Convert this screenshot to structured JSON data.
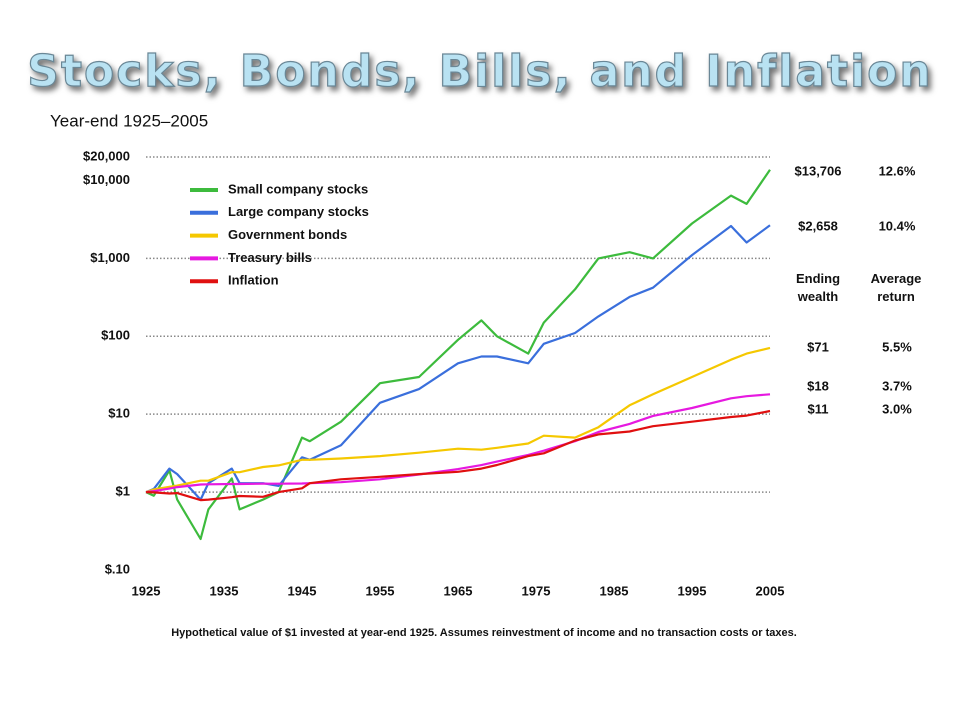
{
  "chart_data": {
    "type": "line",
    "title": "Stocks, Bonds, Bills, and Inflation",
    "subtitle": "Year-end 1925–2005",
    "footnote": "Hypothetical value of $1 invested at year-end 1925. Assumes reinvestment of income and no transaction costs or taxes.",
    "log_scale": true,
    "wealth_header": "Ending wealth",
    "return_header": "Average return",
    "x": [
      1925,
      1926,
      1928,
      1929,
      1932,
      1933,
      1936,
      1937,
      1940,
      1942,
      1945,
      1946,
      1950,
      1955,
      1960,
      1965,
      1968,
      1970,
      1974,
      1976,
      1980,
      1983,
      1987,
      1990,
      1995,
      2000,
      2002,
      2005
    ],
    "xlim": [
      1925,
      2005
    ],
    "xticks": [
      1925,
      1935,
      1945,
      1955,
      1965,
      1975,
      1985,
      1995,
      2005
    ],
    "ylim": [
      0.1,
      20000
    ],
    "yticks": [
      {
        "value": 0.1,
        "label": "$.10",
        "gridline": false
      },
      {
        "value": 1,
        "label": "$1",
        "gridline": true
      },
      {
        "value": 10,
        "label": "$10",
        "gridline": true
      },
      {
        "value": 100,
        "label": "$100",
        "gridline": true
      },
      {
        "value": 1000,
        "label": "$1,000",
        "gridline": true
      },
      {
        "value": 10000,
        "label": "$10,000",
        "gridline": false
      },
      {
        "value": 20000,
        "label": "$20,000",
        "gridline": true
      }
    ],
    "series": [
      {
        "name": "Small company stocks",
        "color": "#3dbb3d",
        "ending_wealth": "$13,706",
        "average_return": "12.6%",
        "values": [
          1,
          0.9,
          1.9,
          0.8,
          0.25,
          0.6,
          1.5,
          0.6,
          0.8,
          1.0,
          5.0,
          4.5,
          8,
          25,
          30,
          90,
          160,
          100,
          60,
          150,
          400,
          1000,
          1200,
          1000,
          2800,
          6400,
          5000,
          13706
        ]
      },
      {
        "name": "Large company stocks",
        "color": "#3a6fdc",
        "ending_wealth": "$2,658",
        "average_return": "10.4%",
        "values": [
          1,
          1.1,
          2.0,
          1.7,
          0.8,
          1.3,
          2.0,
          1.3,
          1.3,
          1.2,
          2.8,
          2.6,
          4,
          14,
          21,
          45,
          55,
          55,
          45,
          80,
          110,
          180,
          320,
          420,
          1100,
          2600,
          1600,
          2658
        ]
      },
      {
        "name": "Government bonds",
        "color": "#f5c800",
        "ending_wealth": "$71",
        "average_return": "5.5%",
        "values": [
          1,
          1.08,
          1.17,
          1.21,
          1.4,
          1.4,
          1.8,
          1.8,
          2.1,
          2.2,
          2.6,
          2.6,
          2.7,
          2.9,
          3.2,
          3.6,
          3.5,
          3.7,
          4.2,
          5.3,
          5.0,
          6.8,
          13,
          18,
          30,
          50,
          60,
          71
        ]
      },
      {
        "name": "Treasury bills",
        "color": "#e619e0",
        "ending_wealth": "$18",
        "average_return": "3.7%",
        "values": [
          1,
          1.03,
          1.11,
          1.16,
          1.25,
          1.26,
          1.27,
          1.27,
          1.28,
          1.28,
          1.29,
          1.3,
          1.34,
          1.46,
          1.68,
          1.97,
          2.22,
          2.46,
          3.0,
          3.4,
          4.5,
          5.9,
          7.5,
          9.5,
          12,
          16,
          17,
          18
        ]
      },
      {
        "name": "Inflation",
        "color": "#e01010",
        "ending_wealth": "$11",
        "average_return": "3.0%",
        "values": [
          1,
          0.99,
          0.96,
          0.97,
          0.79,
          0.8,
          0.86,
          0.89,
          0.87,
          1.0,
          1.12,
          1.3,
          1.46,
          1.57,
          1.7,
          1.82,
          2.0,
          2.23,
          2.9,
          3.15,
          4.6,
          5.5,
          6.0,
          7.0,
          8.0,
          9.2,
          9.6,
          11
        ]
      }
    ]
  }
}
